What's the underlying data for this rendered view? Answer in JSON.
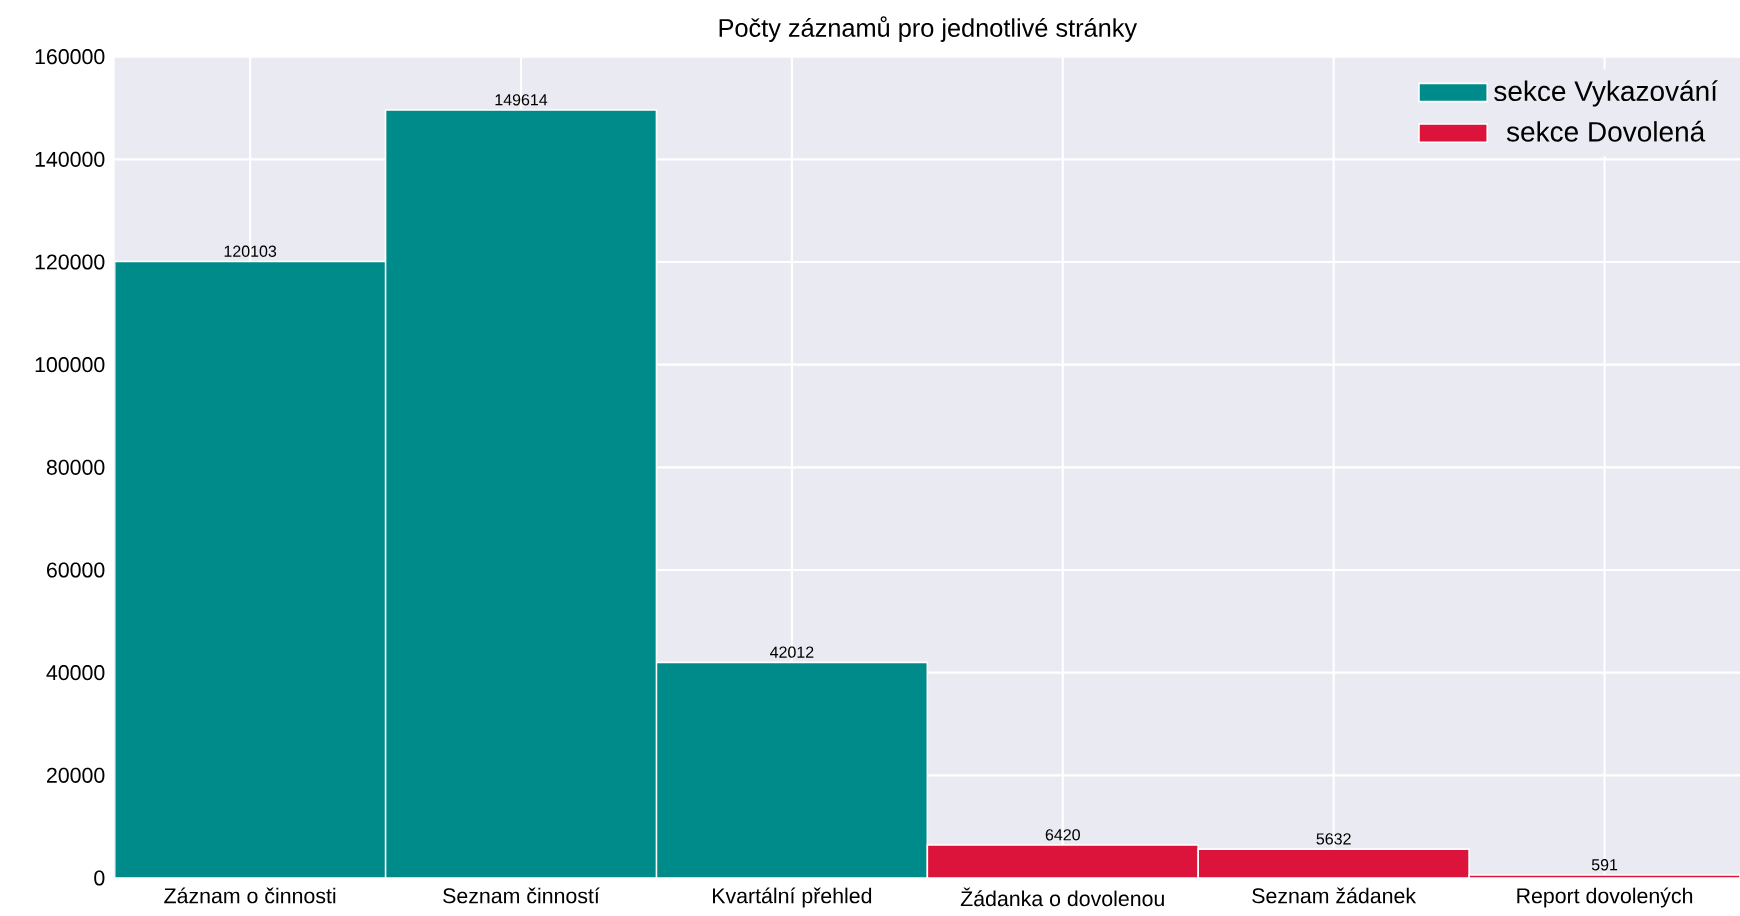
{
  "chart_data": {
    "type": "bar",
    "title": "Počty záznamů pro jednotlivé stránky",
    "categories": [
      "Záznam o činnosti",
      "Seznam činností",
      "Kvartální přehled",
      "Žádanka o dovolenou",
      "Seznam žádanek",
      "Report dovolených"
    ],
    "series": [
      {
        "name": "sekce Vykazování",
        "color": "#008b8b",
        "values": [
          120103,
          149614,
          42012,
          null,
          null,
          null
        ]
      },
      {
        "name": "sekce Dovolená",
        "color": "#dc143c",
        "values": [
          null,
          null,
          null,
          6420,
          5632,
          591
        ]
      }
    ],
    "ylim": [
      0,
      160000
    ],
    "yticks": [
      0,
      20000,
      40000,
      60000,
      80000,
      100000,
      120000,
      140000,
      160000
    ],
    "grid": true,
    "legend": "top right",
    "data_labels": true
  }
}
